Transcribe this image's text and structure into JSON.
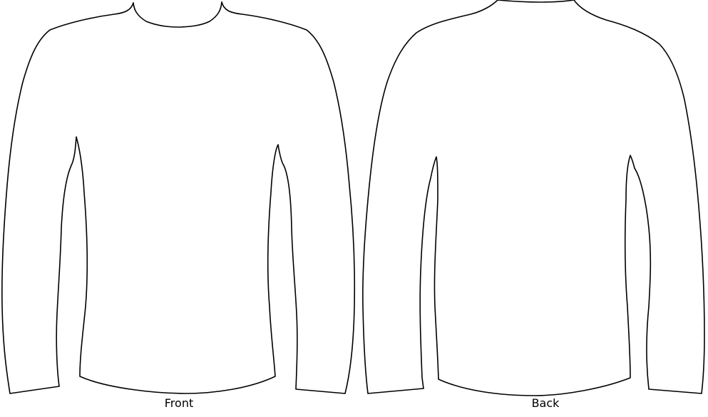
{
  "views": {
    "front": {
      "label": "Front"
    },
    "back": {
      "label": "Back"
    }
  },
  "style": {
    "line_color": "#000000",
    "background": "#ffffff"
  }
}
